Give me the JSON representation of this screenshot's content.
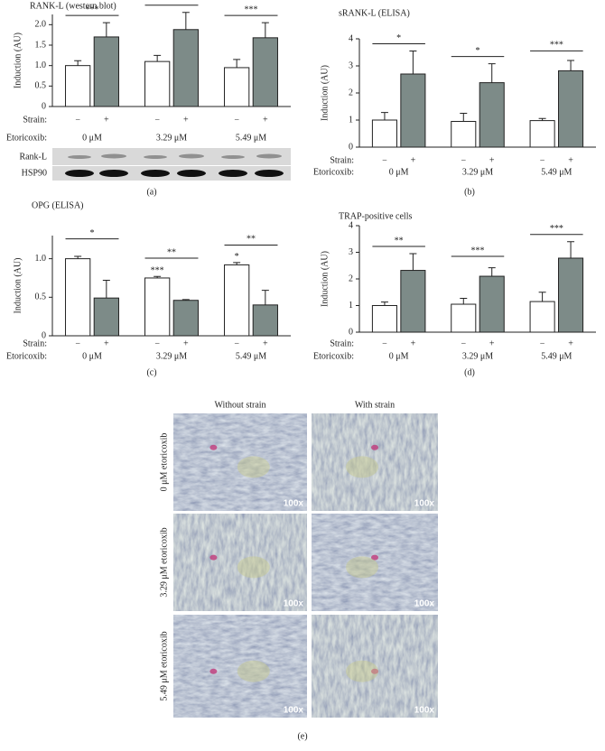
{
  "chart_data": [
    {
      "type": "bar",
      "title": "RANK-L (western blot)",
      "y_label": "Induction (AU)",
      "panel": "(a)",
      "groups": [
        "0 μM",
        "3.29 μM",
        "5.49 μM"
      ],
      "strain_labels": [
        "−",
        "+"
      ],
      "strain_row": "Strain:",
      "etoricoxib_row": "Etoricoxib:",
      "series": [
        {
          "color": "#ffffff",
          "values": [
            1.0,
            1.1,
            0.95
          ],
          "errors": [
            0.12,
            0.15,
            0.2
          ]
        },
        {
          "color": "#7d8b88",
          "values": [
            1.7,
            1.88,
            1.68
          ],
          "errors": [
            0.35,
            0.42,
            0.37
          ]
        }
      ],
      "significance": [
        "***",
        "***",
        "***"
      ],
      "ylim": [
        0,
        2.25
      ],
      "yticks": [
        0,
        0.5,
        {
          "value": 1,
          "label": "1.0"
        },
        1.5,
        {
          "value": 2,
          "label": "2.0"
        }
      ],
      "blot_rows": [
        "Rank-L",
        "HSP90"
      ]
    },
    {
      "type": "bar",
      "title": "sRANK-L (ELISA)",
      "y_label": "Induction (AU)",
      "panel": "(b)",
      "groups": [
        "0 μM",
        "3.29 μM",
        "5.49 μM"
      ],
      "strain_labels": [
        "−",
        "+"
      ],
      "strain_row": "Strain:",
      "etoricoxib_row": "Etoricoxib:",
      "series": [
        {
          "color": "#ffffff",
          "values": [
            1.0,
            0.95,
            0.98
          ],
          "errors": [
            0.28,
            0.3,
            0.08
          ]
        },
        {
          "color": "#7d8b88",
          "values": [
            2.7,
            2.38,
            2.82
          ],
          "errors": [
            0.85,
            0.7,
            0.38
          ]
        }
      ],
      "significance": [
        "*",
        "*",
        "***"
      ],
      "ylim": [
        0,
        4
      ],
      "yticks": [
        0,
        1,
        2,
        3,
        4
      ]
    },
    {
      "type": "bar",
      "title": "OPG (ELISA)",
      "y_label": "Induction (AU)",
      "panel": "(c)",
      "groups": [
        "0 μM",
        "3.29 μM",
        "5.49 μM"
      ],
      "strain_labels": [
        "−",
        "+"
      ],
      "strain_row": "Strain:",
      "etoricoxib_row": "Etoricoxib:",
      "series": [
        {
          "color": "#ffffff",
          "values": [
            1.0,
            0.75,
            0.92
          ],
          "errors": [
            0.03,
            0.02,
            0.03
          ]
        },
        {
          "color": "#7d8b88",
          "values": [
            0.49,
            0.46,
            0.4
          ],
          "errors": [
            0.23,
            0.01,
            0.19
          ]
        }
      ],
      "significance": [
        "*",
        "**",
        "**"
      ],
      "control_significance": [
        null,
        "***",
        "*"
      ],
      "ylim": [
        0,
        1.3
      ],
      "yticks": [
        0,
        0.5,
        {
          "value": 1,
          "label": "1.0"
        }
      ]
    },
    {
      "type": "bar",
      "title": "TRAP-positive cells",
      "y_label": "Induction (AU)",
      "panel": "(d)",
      "groups": [
        "0 μM",
        "3.29 μM",
        "5.49 μM"
      ],
      "strain_labels": [
        "−",
        "+"
      ],
      "strain_row": "Strain:",
      "etoricoxib_row": "Etoricoxib:",
      "series": [
        {
          "color": "#ffffff",
          "values": [
            1.0,
            1.05,
            1.15
          ],
          "errors": [
            0.13,
            0.22,
            0.35
          ]
        },
        {
          "color": "#7d8b88",
          "values": [
            2.32,
            2.1,
            2.78
          ],
          "errors": [
            0.63,
            0.32,
            0.62
          ]
        }
      ],
      "significance": [
        "**",
        "***",
        "***"
      ],
      "ylim": [
        0,
        4
      ],
      "yticks": [
        0,
        1,
        2,
        3,
        4
      ]
    }
  ],
  "micrographs": {
    "columns": [
      "Without strain",
      "With strain"
    ],
    "rows": [
      "0 μM etoricoxib",
      "3.29 μM etoricoxib",
      "5.49 μM etoricoxib"
    ],
    "magnification": "100x",
    "panel": "(e)"
  }
}
